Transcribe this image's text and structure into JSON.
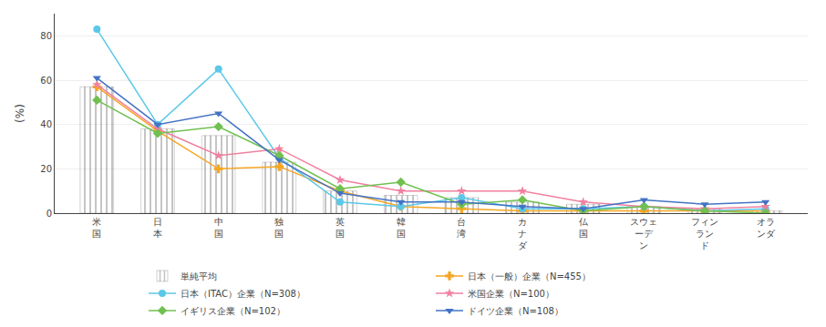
{
  "chart_data": {
    "type": "bar",
    "ylabel": "(%)",
    "categories": [
      "米\n国",
      "日\n本",
      "中\n国",
      "独\n国",
      "英\n国",
      "韓\n国",
      "台\n湾",
      "カ\nナ\nダ",
      "仏\n国",
      "スウェ\nーデ\nン",
      "フィン\nラン\nド",
      "オラ\nンダ"
    ],
    "series": [
      {
        "name": "単純平均",
        "type": "bar",
        "color": "#AEC6E8",
        "values": [
          57,
          38,
          35,
          23,
          10,
          8,
          7,
          5,
          4,
          3,
          2,
          1
        ]
      },
      {
        "name": "日本（一般）企業（N=455）",
        "type": "line",
        "color": "#F5A623",
        "marker": "cross",
        "values": [
          57,
          37,
          20,
          21,
          10,
          3,
          2,
          1,
          1,
          1,
          1,
          1
        ]
      },
      {
        "name": "日本（ITAC）企業（N=308）",
        "type": "line",
        "color": "#5BC8E8",
        "marker": "circle",
        "values": [
          83,
          40,
          65,
          25,
          5,
          3,
          7,
          2,
          2,
          3,
          1,
          2
        ]
      },
      {
        "name": "米国企業（N=100）",
        "type": "line",
        "color": "#F080A0",
        "marker": "star",
        "values": [
          58,
          38,
          26,
          29,
          15,
          10,
          10,
          10,
          5,
          3,
          2,
          3
        ]
      },
      {
        "name": "イギリス企業（N=102）",
        "type": "line",
        "color": "#70C050",
        "marker": "diamond",
        "values": [
          51,
          36,
          39,
          26,
          11,
          14,
          4,
          6,
          1,
          3,
          1,
          0
        ]
      },
      {
        "name": "ドイツ企業（N=108）",
        "type": "line",
        "color": "#4472C4",
        "marker": "triangle-down",
        "values": [
          61,
          40,
          45,
          24,
          9,
          5,
          5,
          3,
          2,
          6,
          4,
          5
        ]
      }
    ],
    "ylim": [
      0,
      90
    ],
    "yticks": [
      0,
      20,
      40,
      60,
      80
    ],
    "grid": true,
    "legend": "bottom"
  }
}
